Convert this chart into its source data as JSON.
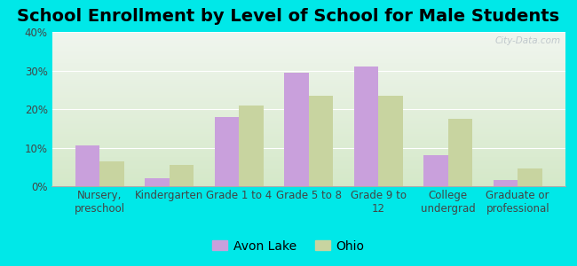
{
  "title": "School Enrollment by Level of School for Male Students",
  "categories": [
    "Nursery,\npreschool",
    "Kindergarten",
    "Grade 1 to 4",
    "Grade 5 to 8",
    "Grade 9 to\n12",
    "College\nundergrad",
    "Graduate or\nprofessional"
  ],
  "avon_lake": [
    10.5,
    2.0,
    18.0,
    29.5,
    31.0,
    8.0,
    1.5
  ],
  "ohio": [
    6.5,
    5.5,
    21.0,
    23.5,
    23.5,
    17.5,
    4.5
  ],
  "avon_lake_color": "#c9a0dc",
  "ohio_color": "#c8d4a0",
  "background_color": "#00e8e8",
  "plot_bg_top": "#f0f5ee",
  "plot_bg_bottom": "#d4e8c8",
  "ylim": [
    0,
    40
  ],
  "yticks": [
    0,
    10,
    20,
    30,
    40
  ],
  "legend_labels": [
    "Avon Lake",
    "Ohio"
  ],
  "bar_width": 0.35,
  "title_fontsize": 14,
  "tick_fontsize": 8.5,
  "legend_fontsize": 10,
  "watermark": "City-Data.com"
}
